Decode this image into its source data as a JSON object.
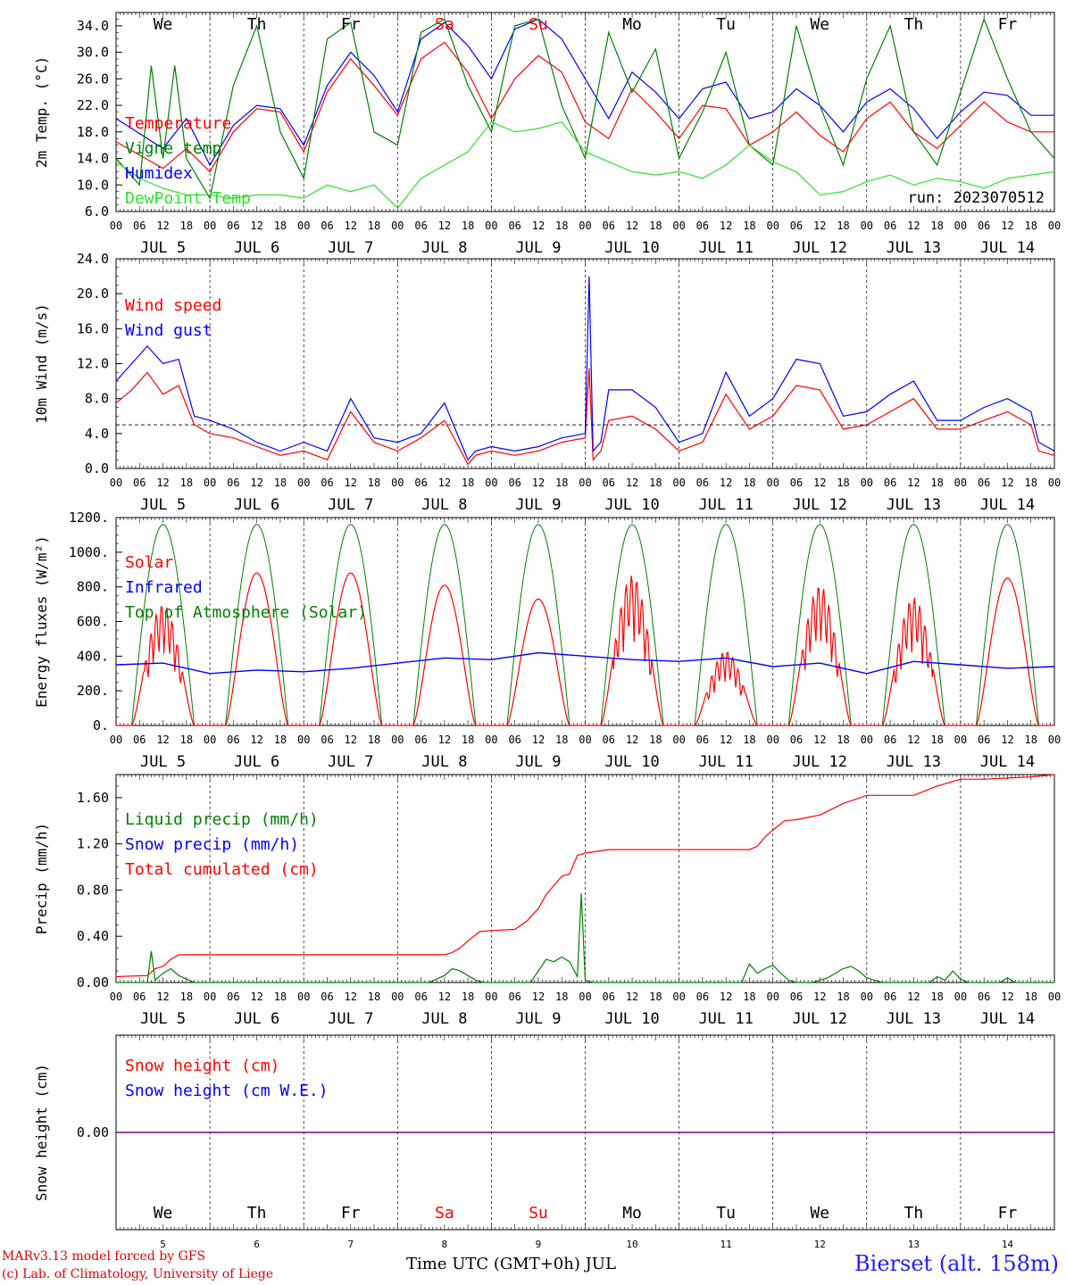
{
  "footer": {
    "credit_line1": "MARv3.13 model forced by GFS",
    "credit_line2": "(c) Lab. of Climatology, University of Liege",
    "x_title": "Time UTC (GMT+0h) JUL",
    "station": "Bierset (alt. 158m)"
  },
  "colors": {
    "red": "#ff0000",
    "green": "#008000",
    "blue": "#0000ff",
    "lightgreen": "#30e030",
    "purple": "#800080",
    "weekend": "#ff0000"
  },
  "chart_data": {
    "type": "line",
    "days": [
      "5",
      "6",
      "7",
      "8",
      "9",
      "10",
      "11",
      "12",
      "13",
      "14"
    ],
    "day_labels": [
      "JUL  5",
      "JUL  6",
      "JUL  7",
      "JUL  8",
      "JUL  9",
      "JUL 10",
      "JUL 11",
      "JUL 12",
      "JUL 13",
      "JUL 14"
    ],
    "hour_ticks": [
      "00",
      "06",
      "12",
      "18"
    ],
    "hour_end": "00",
    "weekdays": [
      "We",
      "Th",
      "Fr",
      "Sa",
      "Su",
      "Mo",
      "Tu",
      "We",
      "Th",
      "Fr"
    ],
    "weekend_days": [
      3,
      4
    ],
    "panels": [
      {
        "id": "temperature",
        "ylabel": "2m Temp. (°C)",
        "ylim": [
          6,
          36
        ],
        "ticks": [
          "6.0",
          "10.0",
          "14.0",
          "18.0",
          "22.0",
          "26.0",
          "30.0",
          "34.0"
        ],
        "legend": [
          "Temperature",
          "Vigne temp",
          "Humidex",
          "DewPoint Temp"
        ],
        "run_label": "run: 2023070512",
        "series": [
          {
            "name": "Temperature",
            "color": "#ff0000",
            "x": [
              0,
              12,
              18,
              24,
              30,
              36,
              42,
              48,
              54,
              60,
              66,
              72,
              78,
              84,
              90,
              96,
              102,
              108,
              114,
              120,
              126,
              132,
              138,
              144,
              150,
              156,
              162,
              168,
              174,
              180,
              186,
              192,
              198,
              204,
              210,
              216,
              222,
              228,
              234,
              240
            ],
            "y": [
              16.5,
              12.5,
              15.5,
              12.0,
              18.0,
              21.5,
              21.0,
              15.0,
              24.0,
              29.0,
              25.0,
              20.5,
              29.0,
              31.5,
              27.0,
              20.0,
              26.0,
              29.5,
              27.0,
              19.5,
              17.0,
              24.5,
              21.0,
              17.0,
              22.0,
              21.5,
              16.0,
              18.0,
              21.0,
              17.5,
              15.0,
              20.0,
              22.5,
              18.0,
              15.5,
              19.0,
              22.5,
              19.5,
              18.0,
              18.0
            ]
          },
          {
            "name": "Humidex",
            "color": "#0000ff",
            "x": [
              0,
              12,
              18,
              24,
              30,
              36,
              42,
              48,
              54,
              60,
              66,
              72,
              78,
              84,
              90,
              96,
              102,
              108,
              114,
              120,
              126,
              132,
              138,
              144,
              150,
              156,
              162,
              168,
              174,
              180,
              186,
              192,
              198,
              204,
              210,
              216,
              222,
              228,
              234,
              240
            ],
            "y": [
              20.0,
              15.5,
              20.0,
              13.0,
              19.0,
              22.0,
              21.5,
              16.0,
              25.0,
              30.0,
              26.5,
              21.0,
              32.0,
              34.5,
              31.0,
              26.0,
              33.5,
              35.0,
              32.0,
              26.0,
              20.0,
              27.0,
              24.0,
              20.0,
              24.5,
              25.5,
              20.0,
              21.0,
              24.5,
              22.0,
              18.0,
              22.5,
              24.5,
              21.5,
              17.0,
              21.0,
              24.0,
              23.5,
              20.5,
              20.5
            ]
          },
          {
            "name": "Vigne temp",
            "color": "#008000",
            "x": [
              0,
              6,
              9,
              12,
              15,
              18,
              24,
              30,
              36,
              42,
              48,
              54,
              60,
              66,
              72,
              78,
              84,
              90,
              96,
              102,
              108,
              114,
              120,
              126,
              132,
              138,
              144,
              150,
              156,
              162,
              168,
              174,
              180,
              186,
              192,
              198,
              204,
              210,
              216,
              222,
              228,
              234,
              240
            ],
            "y": [
              14.0,
              10.0,
              28.0,
              14.0,
              28.0,
              14.0,
              8.0,
              25.0,
              34.0,
              18.0,
              11.0,
              32.0,
              34.5,
              18.0,
              16.0,
              33.0,
              35.0,
              25.0,
              18.0,
              34.0,
              35.0,
              22.0,
              14.0,
              33.0,
              24.0,
              30.5,
              14.0,
              21.0,
              30.0,
              16.0,
              13.0,
              34.0,
              22.0,
              13.0,
              26.0,
              34.0,
              18.0,
              13.0,
              24.0,
              35.0,
              26.0,
              18.0,
              14.0
            ]
          },
          {
            "name": "DewPoint Temp",
            "color": "#30e030",
            "x": [
              0,
              6,
              12,
              18,
              24,
              30,
              36,
              42,
              48,
              54,
              60,
              66,
              72,
              78,
              84,
              90,
              96,
              102,
              108,
              114,
              120,
              126,
              132,
              138,
              144,
              150,
              156,
              162,
              168,
              174,
              180,
              186,
              192,
              198,
              204,
              210,
              216,
              222,
              228,
              234,
              240
            ],
            "y": [
              13.5,
              11.0,
              9.5,
              8.5,
              8.5,
              8.0,
              8.5,
              8.5,
              8.0,
              10.0,
              9.0,
              10.0,
              6.5,
              11.0,
              13.0,
              15.0,
              19.5,
              18.0,
              18.5,
              19.5,
              15.0,
              13.5,
              12.0,
              11.5,
              12.0,
              11.0,
              13.0,
              16.0,
              13.5,
              12.0,
              8.5,
              9.0,
              10.5,
              11.5,
              10.0,
              11.0,
              10.5,
              9.5,
              11.0,
              11.5,
              12.0
            ]
          }
        ]
      },
      {
        "id": "wind",
        "ylabel": "10m Wind (m/s)",
        "ylim": [
          0,
          24
        ],
        "ticks": [
          "0.0",
          "4.0",
          "8.0",
          "12.0",
          "16.0",
          "20.0",
          "24.0"
        ],
        "legend": [
          "Wind speed",
          "Wind gust"
        ],
        "ref_line": 5,
        "series": [
          {
            "name": "Wind speed",
            "color": "#ff0000",
            "x": [
              0,
              4,
              8,
              12,
              16,
              20,
              24,
              30,
              36,
              42,
              48,
              54,
              60,
              66,
              72,
              78,
              84,
              90,
              92,
              96,
              102,
              108,
              114,
              120,
              121,
              122,
              124,
              126,
              132,
              138,
              144,
              150,
              156,
              162,
              168,
              174,
              180,
              186,
              192,
              198,
              204,
              210,
              216,
              222,
              228,
              234,
              236,
              240
            ],
            "y": [
              7.5,
              9.0,
              11.0,
              8.5,
              9.5,
              5.0,
              4.0,
              3.5,
              2.5,
              1.5,
              2.0,
              1.0,
              6.5,
              3.0,
              2.0,
              3.5,
              5.5,
              0.5,
              1.5,
              2.0,
              1.5,
              2.0,
              3.0,
              3.5,
              11.5,
              1.0,
              2.0,
              5.5,
              6.0,
              4.5,
              2.0,
              3.0,
              8.5,
              4.5,
              6.0,
              9.5,
              9.0,
              4.5,
              5.0,
              6.5,
              8.0,
              4.5,
              4.5,
              5.5,
              6.5,
              5.0,
              2.0,
              1.5
            ]
          },
          {
            "name": "Wind gust",
            "color": "#0000ff",
            "x": [
              0,
              4,
              8,
              12,
              16,
              20,
              24,
              30,
              36,
              42,
              48,
              54,
              60,
              66,
              72,
              78,
              84,
              90,
              92,
              96,
              102,
              108,
              114,
              120,
              121,
              122,
              124,
              126,
              132,
              138,
              144,
              150,
              156,
              162,
              168,
              174,
              180,
              186,
              192,
              198,
              204,
              210,
              216,
              222,
              228,
              234,
              236,
              240
            ],
            "y": [
              10.0,
              12.0,
              14.0,
              12.0,
              12.5,
              6.0,
              5.5,
              4.5,
              3.0,
              2.0,
              3.0,
              2.0,
              8.0,
              3.5,
              3.0,
              4.0,
              7.5,
              1.0,
              2.0,
              2.5,
              2.0,
              2.5,
              3.5,
              4.0,
              22.0,
              2.0,
              3.0,
              9.0,
              9.0,
              7.0,
              3.0,
              4.0,
              11.0,
              6.0,
              8.0,
              12.5,
              12.0,
              6.0,
              6.5,
              8.5,
              10.0,
              5.5,
              5.5,
              7.0,
              8.0,
              6.5,
              3.0,
              2.0
            ]
          }
        ]
      },
      {
        "id": "energy",
        "ylabel": "Energy fluxes (W/m²)",
        "ylim": [
          0,
          1200
        ],
        "ticks": [
          "0.",
          "200.",
          "400.",
          "600.",
          "800.",
          "1000.",
          "1200."
        ],
        "legend": [
          "Solar",
          "Infrared",
          "Top of Atmosphere (Solar)"
        ],
        "toa_peak": 1160,
        "solar_peaks": [
          700,
          880,
          880,
          810,
          730,
          870,
          430,
          810,
          740,
          850
        ],
        "series": [
          {
            "name": "Solar",
            "color": "#ff0000"
          },
          {
            "name": "Infrared",
            "color": "#0000ff",
            "x": [
              0,
              12,
              24,
              36,
              48,
              60,
              72,
              84,
              96,
              108,
              120,
              132,
              144,
              156,
              168,
              180,
              192,
              204,
              216,
              228,
              240
            ],
            "y": [
              350,
              360,
              300,
              320,
              310,
              330,
              360,
              390,
              380,
              420,
              400,
              380,
              370,
              390,
              340,
              360,
              300,
              370,
              350,
              330,
              340
            ]
          },
          {
            "name": "Top of Atmosphere (Solar)",
            "color": "#008000"
          }
        ]
      },
      {
        "id": "precip",
        "ylabel": "Precip (mm/h)",
        "ylim": [
          0,
          1.8
        ],
        "ticks": [
          "0.00",
          "0.40",
          "0.80",
          "1.20",
          "1.60"
        ],
        "legend": [
          "Liquid precip (mm/h)",
          "Snow precip (mm/h)",
          "Total cumulated (cm)"
        ],
        "series": [
          {
            "name": "Total cumulated (cm)",
            "color": "#ff0000",
            "x": [
              0,
              8,
              10,
              12,
              14,
              16,
              60,
              84,
              86,
              88,
              90,
              93,
              96,
              102,
              105,
              108,
              110,
              114,
              116,
              118,
              120,
              126,
              162,
              164,
              166,
              168,
              171,
              174,
              180,
              186,
              192,
              198,
              204,
              210,
              216,
              222,
              228,
              234,
              240
            ],
            "y": [
              0.05,
              0.06,
              0.12,
              0.14,
              0.2,
              0.24,
              0.24,
              0.24,
              0.26,
              0.3,
              0.36,
              0.44,
              0.45,
              0.46,
              0.53,
              0.64,
              0.76,
              0.92,
              0.94,
              1.1,
              1.12,
              1.15,
              1.15,
              1.18,
              1.26,
              1.32,
              1.4,
              1.41,
              1.45,
              1.55,
              1.62,
              1.62,
              1.62,
              1.7,
              1.76,
              1.76,
              1.77,
              1.78,
              1.8
            ]
          },
          {
            "name": "Liquid precip (mm/h)",
            "color": "#008000",
            "x": [
              0,
              8,
              9,
              10,
              12,
              14,
              16,
              18,
              20,
              80,
              84,
              86,
              88,
              90,
              92,
              94,
              106,
              108,
              110,
              112,
              114,
              116,
              118,
              119,
              120,
              122,
              160,
              162,
              164,
              166,
              168,
              170,
              172,
              174,
              178,
              182,
              184,
              186,
              188,
              190,
              192,
              194,
              196,
              208,
              210,
              212,
              214,
              216,
              218,
              226,
              228,
              230,
              240
            ],
            "y": [
              0.0,
              0.0,
              0.27,
              0.02,
              0.08,
              0.12,
              0.06,
              0.03,
              0.0,
              0.0,
              0.06,
              0.12,
              0.1,
              0.06,
              0.02,
              0.0,
              0.0,
              0.1,
              0.2,
              0.18,
              0.22,
              0.18,
              0.05,
              0.77,
              0.02,
              0.0,
              0.0,
              0.16,
              0.08,
              0.12,
              0.15,
              0.08,
              0.02,
              0.0,
              0.0,
              0.04,
              0.08,
              0.12,
              0.14,
              0.1,
              0.04,
              0.02,
              0.0,
              0.0,
              0.05,
              0.02,
              0.1,
              0.03,
              0.0,
              0.0,
              0.04,
              0.0,
              0.0
            ]
          }
        ]
      },
      {
        "id": "snow",
        "ylabel": "Snow height (cm)",
        "ylim": [
          -1,
          1
        ],
        "ticks": [
          "0.00"
        ],
        "legend": [
          "Snow height (cm)",
          "Snow height (cm W.E.)"
        ],
        "series": [
          {
            "name": "Snow height",
            "color": "#800080",
            "x": [
              0,
              240
            ],
            "y": [
              0,
              0
            ]
          }
        ]
      }
    ]
  }
}
